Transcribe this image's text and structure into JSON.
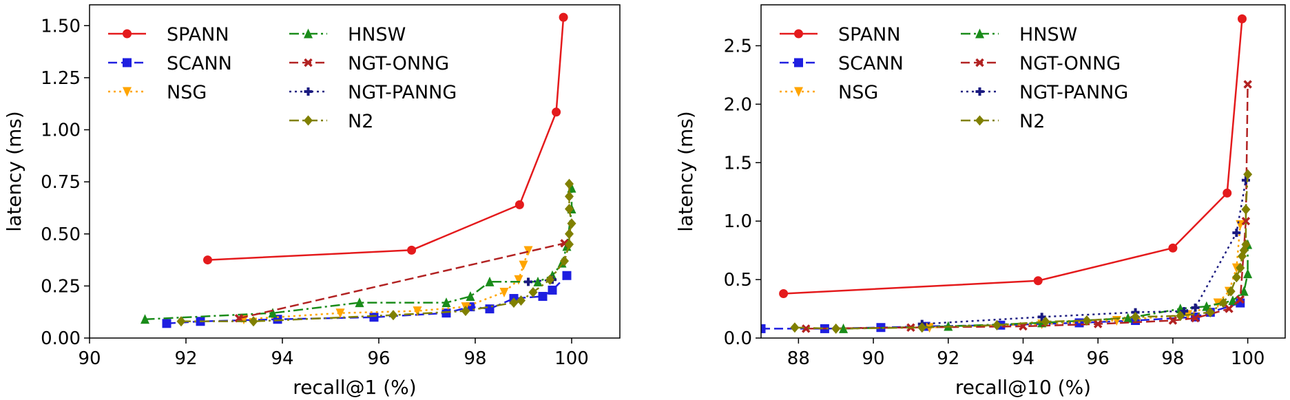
{
  "chart_data": [
    {
      "type": "line",
      "xlabel": "recall@1 (%)",
      "ylabel": "latency (ms)",
      "xlim": [
        90,
        101
      ],
      "ylim": [
        0,
        1.6
      ],
      "xticks": [
        90,
        92,
        94,
        96,
        98,
        100
      ],
      "xtick_labels": [
        "90",
        "92",
        "94",
        "96",
        "98",
        "100"
      ],
      "yticks": [
        0,
        0.25,
        0.5,
        0.75,
        1.0,
        1.25,
        1.5
      ],
      "ytick_labels": [
        "0.00",
        "0.25",
        "0.50",
        "0.75",
        "1.00",
        "1.25",
        "1.50"
      ],
      "legend_position": "top-left",
      "grid": false,
      "series": [
        {
          "name": "SPANN",
          "color": "#e41a1c",
          "dash": "solid",
          "marker": "circle",
          "x": [
            92.45,
            96.68,
            98.92,
            99.68,
            99.83
          ],
          "y": [
            0.375,
            0.422,
            0.64,
            1.085,
            1.54
          ]
        },
        {
          "name": "SCANN",
          "color": "#1f1fe0",
          "dash": "dashed",
          "marker": "square",
          "x": [
            91.6,
            92.3,
            93.9,
            95.9,
            97.4,
            97.9,
            98.3,
            98.8,
            99.4,
            99.6,
            99.9
          ],
          "y": [
            0.07,
            0.08,
            0.09,
            0.1,
            0.12,
            0.15,
            0.14,
            0.19,
            0.2,
            0.23,
            0.3
          ]
        },
        {
          "name": "NSG",
          "color": "#ffa500",
          "dash": "dotted",
          "marker": "triangle-down",
          "x": [
            93.2,
            95.2,
            96.8,
            97.8,
            98.6,
            98.9,
            99.0,
            99.1
          ],
          "y": [
            0.09,
            0.12,
            0.13,
            0.15,
            0.22,
            0.28,
            0.35,
            0.42
          ]
        },
        {
          "name": "HNSW",
          "color": "#1a8c1a",
          "dash": "dashdot",
          "marker": "triangle-up",
          "x": [
            91.15,
            93.8,
            95.6,
            97.4,
            97.9,
            98.3,
            99.3,
            99.6,
            99.8,
            99.9,
            100.0,
            100.0
          ],
          "y": [
            0.09,
            0.12,
            0.17,
            0.17,
            0.2,
            0.27,
            0.27,
            0.3,
            0.36,
            0.44,
            0.62,
            0.72
          ]
        },
        {
          "name": "NGT-ONNG",
          "color": "#b22222",
          "dash": "dashed",
          "marker": "x",
          "x": [
            93.1,
            99.85
          ],
          "y": [
            0.095,
            0.455
          ]
        },
        {
          "name": "NGT-PANNG",
          "color": "#1a1a80",
          "dash": "dotted",
          "marker": "plus",
          "x": [
            99.1,
            99.6
          ],
          "y": [
            0.27,
            0.28
          ]
        },
        {
          "name": "N2",
          "color": "#808000",
          "dash": "dashdot",
          "marker": "diamond",
          "x": [
            91.9,
            93.4,
            96.3,
            97.8,
            98.8,
            98.95,
            99.2,
            99.55,
            99.85,
            99.95,
            99.95,
            100.0,
            99.95,
            99.95,
            99.95
          ],
          "y": [
            0.08,
            0.08,
            0.11,
            0.13,
            0.17,
            0.18,
            0.22,
            0.28,
            0.37,
            0.45,
            0.5,
            0.55,
            0.62,
            0.68,
            0.74
          ]
        }
      ]
    },
    {
      "type": "line",
      "xlabel": "recall@10 (%)",
      "ylabel": "latency (ms)",
      "xlim": [
        87,
        101
      ],
      "ylim": [
        0,
        2.85
      ],
      "xticks": [
        88,
        90,
        92,
        94,
        96,
        98,
        100
      ],
      "xtick_labels": [
        "88",
        "90",
        "92",
        "94",
        "96",
        "98",
        "100"
      ],
      "yticks": [
        0,
        0.5,
        1.0,
        1.5,
        2.0,
        2.5
      ],
      "ytick_labels": [
        "0.0",
        "0.5",
        "1.0",
        "1.5",
        "2.0",
        "2.5"
      ],
      "legend_position": "top-left",
      "grid": false,
      "series": [
        {
          "name": "SPANN",
          "color": "#e41a1c",
          "dash": "solid",
          "marker": "circle",
          "x": [
            87.6,
            94.4,
            98.0,
            99.45,
            99.85
          ],
          "y": [
            0.38,
            0.49,
            0.77,
            1.24,
            2.73
          ]
        },
        {
          "name": "SCANN",
          "color": "#1f1fe0",
          "dash": "dashed",
          "marker": "square",
          "x": [
            87.0,
            88.7,
            90.2,
            91.4,
            93.4,
            95.5,
            97.0,
            98.6,
            99.0,
            99.8
          ],
          "y": [
            0.08,
            0.08,
            0.09,
            0.1,
            0.11,
            0.13,
            0.15,
            0.18,
            0.22,
            0.3
          ]
        },
        {
          "name": "NSG",
          "color": "#ffa500",
          "dash": "dotted",
          "marker": "triangle-down",
          "x": [
            91.5,
            94.5,
            96.5,
            98.4,
            99.2,
            99.5,
            99.7,
            99.8
          ],
          "y": [
            0.09,
            0.12,
            0.15,
            0.2,
            0.3,
            0.4,
            0.6,
            0.97
          ]
        },
        {
          "name": "HNSW",
          "color": "#1a8c1a",
          "dash": "dashdot",
          "marker": "triangle-up",
          "x": [
            89.2,
            92.0,
            94.5,
            96.8,
            98.2,
            98.9,
            99.6,
            99.9,
            100.0,
            100.0
          ],
          "y": [
            0.08,
            0.1,
            0.13,
            0.17,
            0.25,
            0.27,
            0.32,
            0.4,
            0.55,
            0.8
          ]
        },
        {
          "name": "NGT-ONNG",
          "color": "#b22222",
          "dash": "dashed",
          "marker": "x",
          "x": [
            88.2,
            91.0,
            94.0,
            96.0,
            98.0,
            98.6,
            99.5,
            99.8,
            99.95,
            100.0
          ],
          "y": [
            0.08,
            0.09,
            0.1,
            0.12,
            0.15,
            0.17,
            0.25,
            0.33,
            1.0,
            2.17
          ]
        },
        {
          "name": "NGT-PANNG",
          "color": "#1a1a80",
          "dash": "dotted",
          "marker": "plus",
          "x": [
            91.3,
            94.5,
            97.0,
            98.3,
            98.6,
            99.7,
            99.95
          ],
          "y": [
            0.12,
            0.18,
            0.22,
            0.23,
            0.26,
            0.9,
            1.35
          ]
        },
        {
          "name": "N2",
          "color": "#808000",
          "dash": "dashdot",
          "marker": "diamond",
          "x": [
            87.9,
            89.0,
            91.3,
            93.3,
            94.6,
            95.7,
            97.0,
            98.2,
            99.0,
            99.35,
            99.55,
            99.7,
            99.8,
            99.85,
            99.9,
            99.95,
            99.95,
            100.0
          ],
          "y": [
            0.09,
            0.08,
            0.09,
            0.11,
            0.14,
            0.15,
            0.18,
            0.19,
            0.22,
            0.3,
            0.4,
            0.52,
            0.6,
            0.7,
            0.75,
            0.8,
            1.1,
            1.4
          ]
        }
      ]
    }
  ]
}
